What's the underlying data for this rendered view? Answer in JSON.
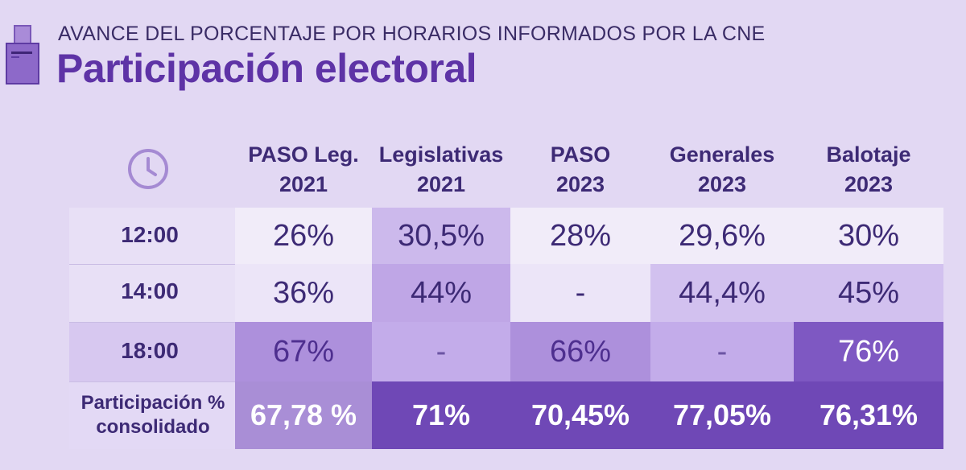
{
  "header": {
    "supertitle": "AVANCE DEL PORCENTAJE POR HORARIOS INFORMADOS POR LA CNE",
    "title": "Participación electoral"
  },
  "columns": [
    {
      "line1": "PASO Leg.",
      "line2": "2021"
    },
    {
      "line1": "Legislativas",
      "line2": "2021"
    },
    {
      "line1": "PASO",
      "line2": "2023"
    },
    {
      "line1": "Generales",
      "line2": "2023"
    },
    {
      "line1": "Balotaje",
      "line2": "2023"
    }
  ],
  "rows": [
    {
      "label": "12:00",
      "values": [
        "26%",
        "30,5%",
        "28%",
        "29,6%",
        "30%"
      ]
    },
    {
      "label": "14:00",
      "values": [
        "36%",
        "44%",
        "-",
        "44,4%",
        "45%"
      ]
    },
    {
      "label": "18:00",
      "values": [
        "67%",
        "-",
        "66%",
        "-",
        "76%"
      ]
    },
    {
      "label_line1": "Participación %",
      "label_line2": "consolidado",
      "values": [
        "67,78 %",
        "71%",
        "70,45%",
        "77,05%",
        "76,31%"
      ]
    }
  ],
  "colors": {
    "background": "#e2d8f3",
    "title": "#5e33a6",
    "text_dark": "#3d2a75",
    "cell_white": "#f1ecf9",
    "cell_light": "#d2c1ef",
    "cell_mid": "#ae92dd",
    "cell_strong": "#9a79d1",
    "cell_dark": "#7049b8"
  }
}
